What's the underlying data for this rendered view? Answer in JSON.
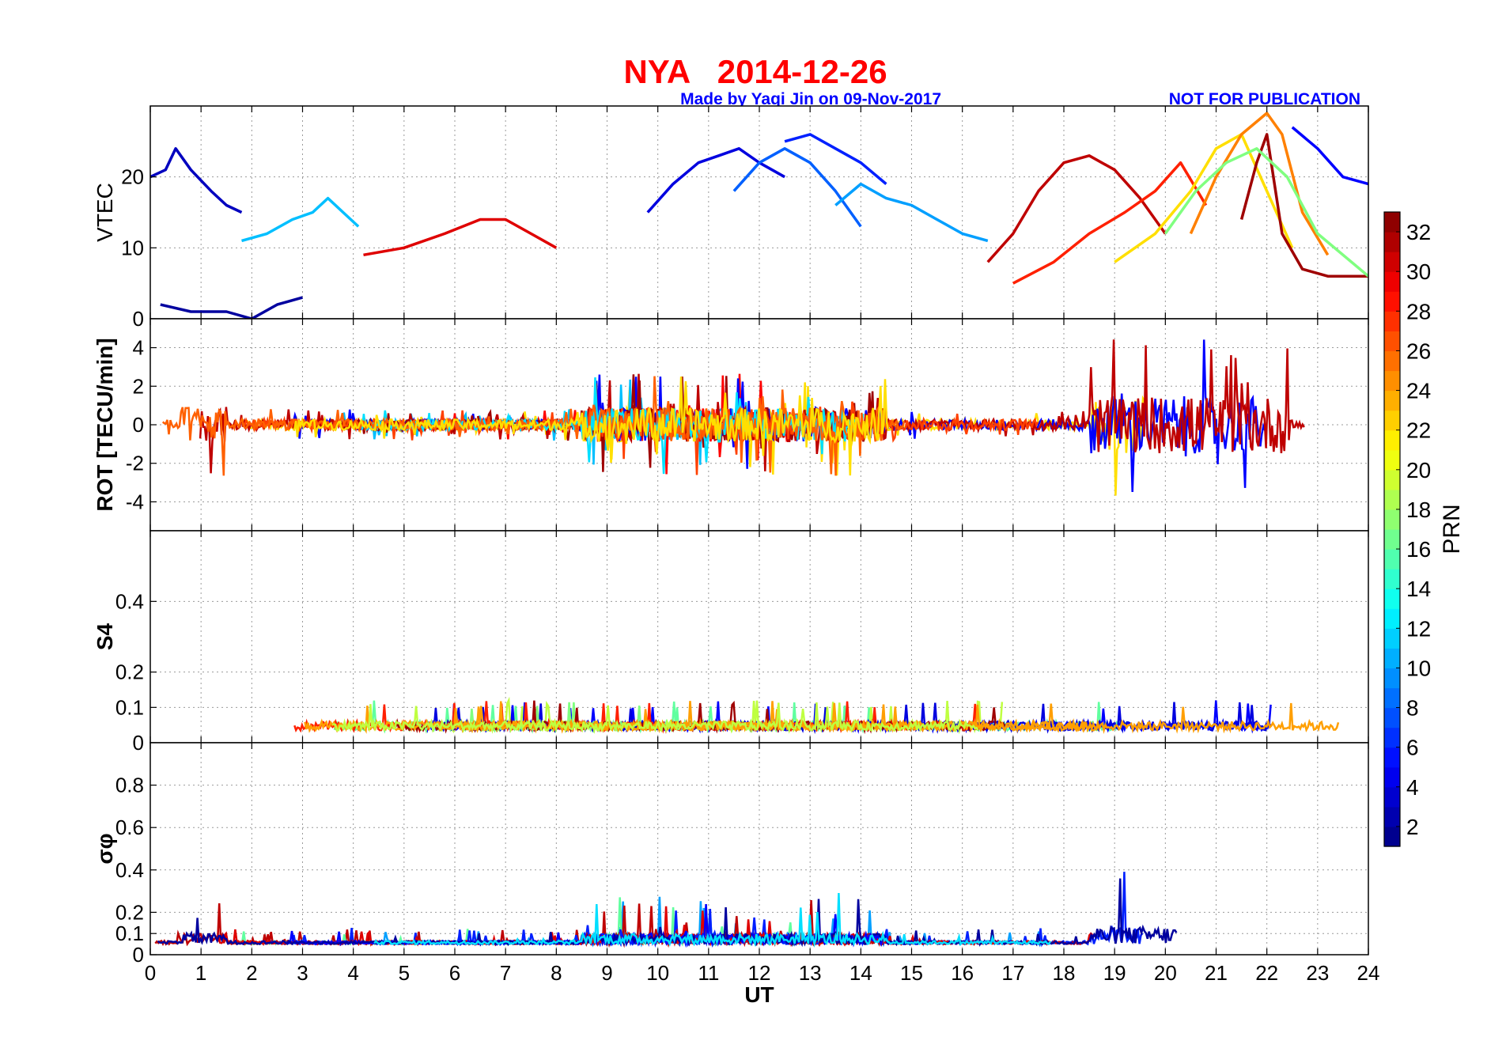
{
  "header": {
    "title": "NYA   2014-12-26",
    "credit": "Made by Yaqi Jin on 09-Nov-2017",
    "notice": "NOT FOR PUBLICATION",
    "title_color": "#ff0000",
    "credit_color": "#0000ff"
  },
  "chart_data": [
    {
      "type": "line",
      "panel": "vtec",
      "ylabel": "VTEC",
      "ylim": [
        0,
        30
      ],
      "yticks": [
        0,
        10,
        20
      ],
      "xlim": [
        0,
        24
      ],
      "series": [
        {
          "prn": 3,
          "x": [
            0.0,
            0.3,
            0.5,
            0.8,
            1.2,
            1.5,
            1.8
          ],
          "values": [
            20,
            21,
            24,
            21,
            18,
            16,
            15
          ]
        },
        {
          "prn": 11,
          "x": [
            1.8,
            2.3,
            2.8,
            3.2,
            3.5,
            3.8,
            4.1
          ],
          "values": [
            11,
            12,
            14,
            15,
            17,
            15,
            13
          ]
        },
        {
          "prn": 30,
          "x": [
            4.2,
            5.0,
            5.8,
            6.5,
            7.0,
            7.5,
            8.0
          ],
          "values": [
            9,
            10,
            12,
            14,
            14,
            12,
            10
          ]
        },
        {
          "prn": 4,
          "x": [
            9.8,
            10.3,
            10.8,
            11.2,
            11.6,
            12.0,
            12.5
          ],
          "values": [
            15,
            19,
            22,
            23,
            24,
            22,
            20
          ]
        },
        {
          "prn": 8,
          "x": [
            11.5,
            12.0,
            12.5,
            13.0,
            13.5,
            14.0
          ],
          "values": [
            18,
            22,
            24,
            22,
            18,
            13
          ]
        },
        {
          "prn": 6,
          "x": [
            12.5,
            13.0,
            13.5,
            14.0,
            14.5
          ],
          "values": [
            25,
            26,
            24,
            22,
            19
          ]
        },
        {
          "prn": 10,
          "x": [
            13.5,
            14.0,
            14.5,
            15.0,
            15.5,
            16.0,
            16.5
          ],
          "values": [
            16,
            19,
            17,
            16,
            14,
            12,
            11
          ]
        },
        {
          "prn": 31,
          "x": [
            16.5,
            17.0,
            17.5,
            18.0,
            18.5,
            19.0,
            19.5,
            20.0
          ],
          "values": [
            8,
            12,
            18,
            22,
            23,
            21,
            17,
            12
          ]
        },
        {
          "prn": 28,
          "x": [
            17.0,
            17.8,
            18.5,
            19.2,
            19.8,
            20.3,
            20.8
          ],
          "values": [
            5,
            8,
            12,
            15,
            18,
            22,
            16
          ]
        },
        {
          "prn": 22,
          "x": [
            19.0,
            19.8,
            20.5,
            21.0,
            21.5,
            22.0,
            22.5
          ],
          "values": [
            8,
            12,
            18,
            24,
            26,
            18,
            10
          ]
        },
        {
          "prn": 25,
          "x": [
            20.5,
            21.0,
            21.5,
            22.0,
            22.3,
            22.7,
            23.2
          ],
          "values": [
            12,
            20,
            26,
            29,
            26,
            15,
            9
          ]
        },
        {
          "prn": 32,
          "x": [
            21.5,
            21.8,
            22.0,
            22.3,
            22.7,
            23.2,
            24.0
          ],
          "values": [
            14,
            22,
            26,
            12,
            7,
            6,
            6
          ]
        },
        {
          "prn": 5,
          "x": [
            22.5,
            23.0,
            23.5,
            24.0
          ],
          "values": [
            27,
            24,
            20,
            19
          ]
        },
        {
          "prn": 17,
          "x": [
            20.0,
            20.6,
            21.2,
            21.8,
            22.4,
            23.0,
            24.0
          ],
          "values": [
            12,
            18,
            22,
            24,
            20,
            12,
            6
          ]
        },
        {
          "prn": 2,
          "x": [
            0.2,
            0.8,
            1.5,
            2.0,
            2.5,
            3.0
          ],
          "values": [
            2,
            1,
            1,
            0,
            2,
            3
          ]
        }
      ]
    },
    {
      "type": "line",
      "panel": "rot",
      "ylabel": "ROT [TECU/min]",
      "ylim": [
        -5.5,
        5.5
      ],
      "yticks": [
        -4,
        -2,
        0,
        2,
        4
      ],
      "xlim": [
        0,
        24
      ],
      "series": []
    },
    {
      "type": "line",
      "panel": "s4",
      "ylabel": "S4",
      "ylim": [
        0,
        0.6
      ],
      "yticks": [
        0,
        0.1,
        0.2,
        0.4
      ],
      "xlim": [
        0,
        24
      ],
      "series": []
    },
    {
      "type": "line",
      "panel": "sigma_phi",
      "ylabel": "σφ",
      "ylim": [
        0,
        1.0
      ],
      "yticks": [
        0,
        0.1,
        0.2,
        0.4,
        0.6,
        0.8
      ],
      "xlim": [
        0,
        24
      ],
      "xticks": [
        0,
        1,
        2,
        3,
        4,
        5,
        6,
        7,
        8,
        9,
        10,
        11,
        12,
        13,
        14,
        15,
        16,
        17,
        18,
        19,
        20,
        21,
        22,
        23,
        24
      ],
      "xlabel": "UT",
      "series": []
    }
  ],
  "colorbar": {
    "label": "PRN",
    "range": [
      1,
      33
    ],
    "ticks": [
      2,
      4,
      6,
      8,
      10,
      12,
      14,
      16,
      18,
      20,
      22,
      24,
      26,
      28,
      30,
      32
    ],
    "colormap": "jet"
  }
}
